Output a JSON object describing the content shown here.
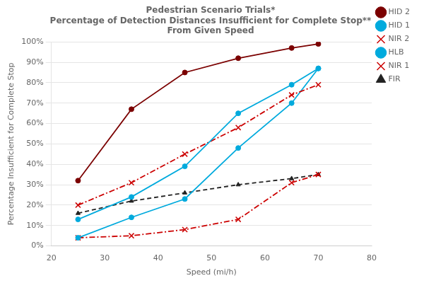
{
  "chart_data": {
    "type": "line",
    "title": "Pedestrian Scenario Trials*\nPercentage of Detection Distances Insufficient for Complete Stop**\nFrom Given Speed",
    "x_label": "Speed (mi/h)",
    "y_label": "Percentage Insufficient for Complete Stop",
    "xlim": [
      20,
      80
    ],
    "ylim": [
      0,
      1.0
    ],
    "xticks": [
      20,
      30,
      40,
      50,
      60,
      70,
      80
    ],
    "yticks": [
      {
        "value": 0.0,
        "label": "0%"
      },
      {
        "value": 0.1,
        "label": "10%"
      },
      {
        "value": 0.2,
        "label": "20%"
      },
      {
        "value": 0.3,
        "label": "30%"
      },
      {
        "value": 0.4,
        "label": "40%"
      },
      {
        "value": 0.5,
        "label": "50%"
      },
      {
        "value": 0.6,
        "label": "60%"
      },
      {
        "value": 0.7,
        "label": "70%"
      },
      {
        "value": 0.8,
        "label": "80%"
      },
      {
        "value": 0.9,
        "label": "90%"
      },
      {
        "value": 1.0,
        "label": "100%"
      }
    ],
    "grid": "y",
    "legend": "upper right",
    "series": [
      {
        "name": "HID 2",
        "color": "#7B0000",
        "marker": "circle",
        "line_style": "solid",
        "x": [
          25,
          35,
          45,
          55,
          65,
          70
        ],
        "values": [
          0.32,
          0.67,
          0.85,
          0.92,
          0.97,
          0.99
        ]
      },
      {
        "name": "HID 1",
        "color": "#00AADD",
        "marker": "circle",
        "line_style": "solid",
        "x": [
          25,
          35,
          45,
          55,
          65,
          70
        ],
        "values": [
          0.13,
          0.24,
          0.39,
          0.65,
          0.79,
          0.87
        ]
      },
      {
        "name": "NIR 2",
        "color": "#CC0000",
        "marker": "x",
        "line_style": "dashdot",
        "x": [
          25,
          35,
          45,
          55,
          65,
          70
        ],
        "values": [
          0.2,
          0.31,
          0.45,
          0.58,
          0.74,
          0.79
        ]
      },
      {
        "name": "HLB",
        "color": "#00AADD",
        "marker": "circle",
        "line_style": "solid",
        "x": [
          25,
          35,
          45,
          55,
          65,
          70
        ],
        "values": [
          0.04,
          0.14,
          0.23,
          0.48,
          0.7,
          0.87
        ]
      },
      {
        "name": "NIR 1",
        "color": "#CC0000",
        "marker": "x",
        "line_style": "dashdot",
        "x": [
          25,
          35,
          45,
          55,
          65,
          70
        ],
        "values": [
          0.04,
          0.05,
          0.08,
          0.13,
          0.31,
          0.35
        ]
      },
      {
        "name": "FIR",
        "color": "#222222",
        "marker": "triangle",
        "line_style": "dashed",
        "x": [
          25,
          35,
          45,
          55,
          65,
          70
        ],
        "values": [
          0.16,
          0.22,
          0.26,
          0.3,
          0.33,
          0.35
        ]
      }
    ]
  }
}
